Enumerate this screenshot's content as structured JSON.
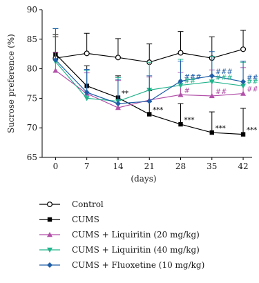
{
  "chart_data": {
    "type": "line",
    "xlabel": "(days)",
    "ylabel": "Sucrose preference (%)",
    "ylim": [
      65,
      90
    ],
    "xlim": [
      -3,
      44
    ],
    "x_ticks": [
      0,
      7,
      14,
      21,
      28,
      35,
      42
    ],
    "y_ticks": [
      65,
      70,
      75,
      80,
      85,
      90
    ],
    "x": [
      0,
      7,
      14,
      21,
      28,
      35,
      42
    ],
    "series": [
      {
        "name": "Control",
        "color": "#000000",
        "marker": "open-circle",
        "values": [
          81.8,
          82.6,
          81.9,
          81.1,
          82.7,
          81.8,
          83.3
        ],
        "errors": [
          3.6,
          3.4,
          3.2,
          3.1,
          3.6,
          3.6,
          3.2
        ]
      },
      {
        "name": "CUMS",
        "color": "#000000",
        "marker": "filled-square",
        "values": [
          82.5,
          77.1,
          75.1,
          72.3,
          70.6,
          69.2,
          68.9
        ],
        "errors": [
          3.3,
          3.4,
          3.7,
          4.0,
          3.5,
          3.5,
          4.4
        ]
      },
      {
        "name": "CUMS + Liquiritin (20 mg/kg)",
        "color": "#b24fa8",
        "marker": "triangle-up",
        "values": [
          79.7,
          75.8,
          73.4,
          74.7,
          75.6,
          75.4,
          75.8
        ],
        "errors": [
          3.0,
          3.5,
          4.6,
          3.9,
          3.8,
          4.4,
          4.4
        ]
      },
      {
        "name": "CUMS + Liquiritin (40 mg/kg)",
        "color": "#21b38c",
        "marker": "triangle-down",
        "values": [
          81.2,
          75.0,
          74.5,
          76.4,
          77.2,
          77.8,
          77.1
        ],
        "errors": [
          5.6,
          4.7,
          4.0,
          4.7,
          4.4,
          4.3,
          4.0
        ]
      },
      {
        "name": "CUMS + Fluoxetine (10 mg/kg)",
        "color": "#1f5ea8",
        "marker": "diamond",
        "values": [
          81.5,
          76.0,
          74.1,
          74.5,
          77.9,
          78.8,
          77.8
        ],
        "errors": [
          5.3,
          3.9,
          4.1,
          4.3,
          3.4,
          4.1,
          3.5
        ]
      }
    ],
    "annotations": [
      {
        "text": "**",
        "x": 14,
        "series": "CUMS",
        "color": "#000000"
      },
      {
        "text": "***",
        "x": 21,
        "series": "CUMS",
        "color": "#000000"
      },
      {
        "text": "***",
        "x": 28,
        "series": "CUMS",
        "color": "#000000"
      },
      {
        "text": "***",
        "x": 35,
        "series": "CUMS",
        "color": "#000000"
      },
      {
        "text": "***",
        "x": 42,
        "series": "CUMS",
        "color": "#000000"
      },
      {
        "text": "#",
        "x": 28,
        "series": "CUMS + Liquiritin (20 mg/kg)",
        "color": "#b24fa8"
      },
      {
        "text": "##",
        "x": 35,
        "series": "CUMS + Liquiritin (20 mg/kg)",
        "color": "#b24fa8"
      },
      {
        "text": "##",
        "x": 42,
        "series": "CUMS + Liquiritin (20 mg/kg)",
        "color": "#b24fa8"
      },
      {
        "text": "##",
        "x": 28,
        "series": "CUMS + Liquiritin (40 mg/kg)",
        "color": "#21b38c"
      },
      {
        "text": "###",
        "x": 35,
        "series": "CUMS + Liquiritin (40 mg/kg)",
        "color": "#21b38c"
      },
      {
        "text": "##",
        "x": 42,
        "series": "CUMS + Liquiritin (40 mg/kg)",
        "color": "#21b38c"
      },
      {
        "text": "###",
        "x": 28,
        "series": "CUMS + Fluoxetine (10 mg/kg)",
        "color": "#1f5ea8"
      },
      {
        "text": "###",
        "x": 35,
        "series": "CUMS + Fluoxetine (10 mg/kg)",
        "color": "#1f5ea8"
      },
      {
        "text": "##",
        "x": 42,
        "series": "CUMS + Fluoxetine (10 mg/kg)",
        "color": "#1f5ea8"
      }
    ],
    "grid": false,
    "legend_position": "bottom"
  }
}
